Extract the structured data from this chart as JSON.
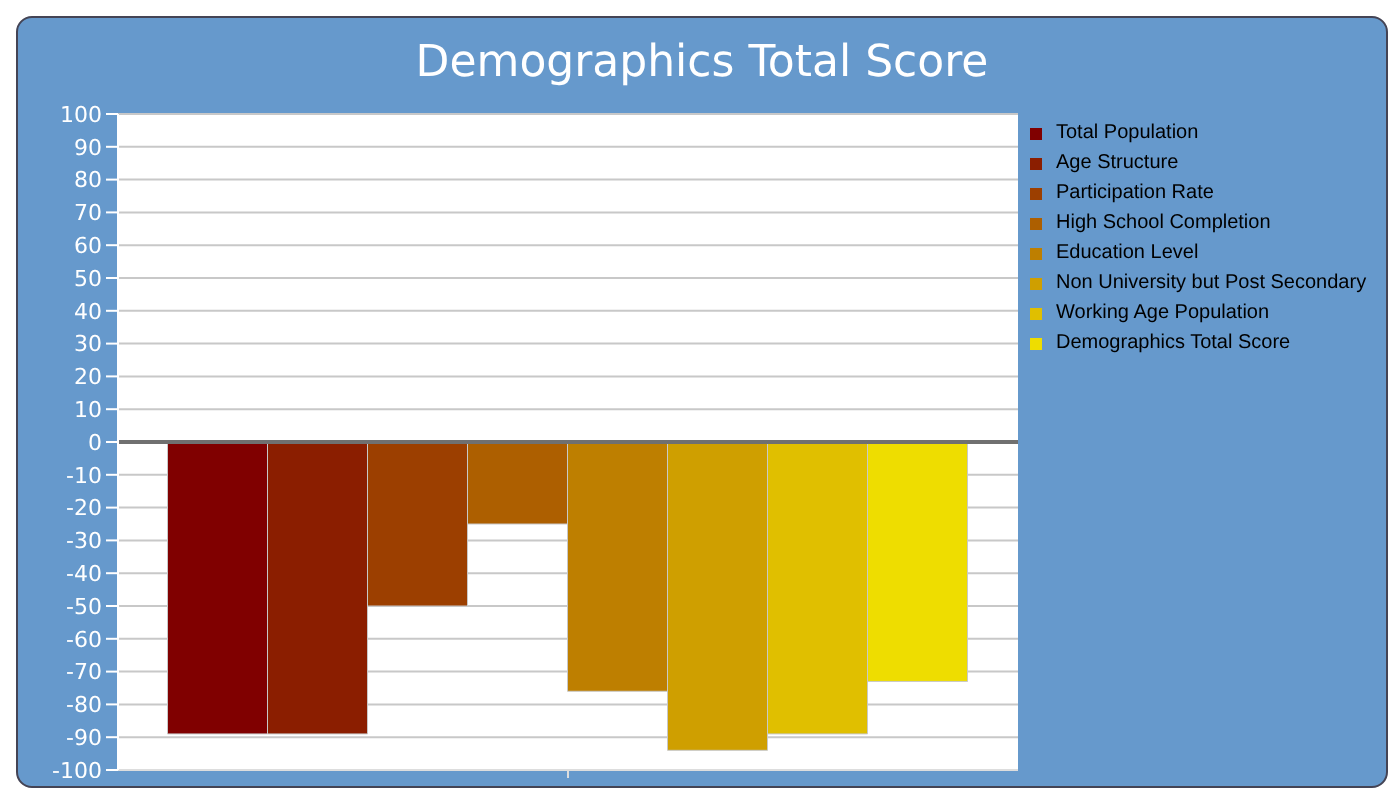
{
  "chart_data": {
    "type": "bar",
    "title": "Demographics Total Score",
    "categories": [
      null
    ],
    "series": [
      {
        "name": "Total Population",
        "color": "#800000",
        "values": [
          -89
        ]
      },
      {
        "name": "Age Structure",
        "color": "#8b1e00",
        "values": [
          -89
        ]
      },
      {
        "name": "Participation Rate",
        "color": "#9c3f00",
        "values": [
          -50
        ]
      },
      {
        "name": "High School Completion",
        "color": "#ad5f00",
        "values": [
          -25
        ]
      },
      {
        "name": "Education Level",
        "color": "#be7f00",
        "values": [
          -76
        ]
      },
      {
        "name": "Non University but Post Secondary",
        "color": "#cf9f00",
        "values": [
          -94
        ]
      },
      {
        "name": "Working Age Population",
        "color": "#e0bf00",
        "values": [
          -89
        ]
      },
      {
        "name": "Demographics Total Score",
        "color": "#eedd00",
        "values": [
          -73
        ]
      }
    ],
    "ylim": [
      -100,
      100
    ],
    "yticks": [
      -100,
      -90,
      -80,
      -70,
      -60,
      -50,
      -40,
      -30,
      -20,
      -10,
      0,
      10,
      20,
      30,
      40,
      50,
      60,
      70,
      80,
      90,
      100
    ],
    "ref_lines": [
      {
        "axis": "y",
        "value": 0,
        "color": "#707070"
      }
    ],
    "grid": "y",
    "legend": "right"
  }
}
